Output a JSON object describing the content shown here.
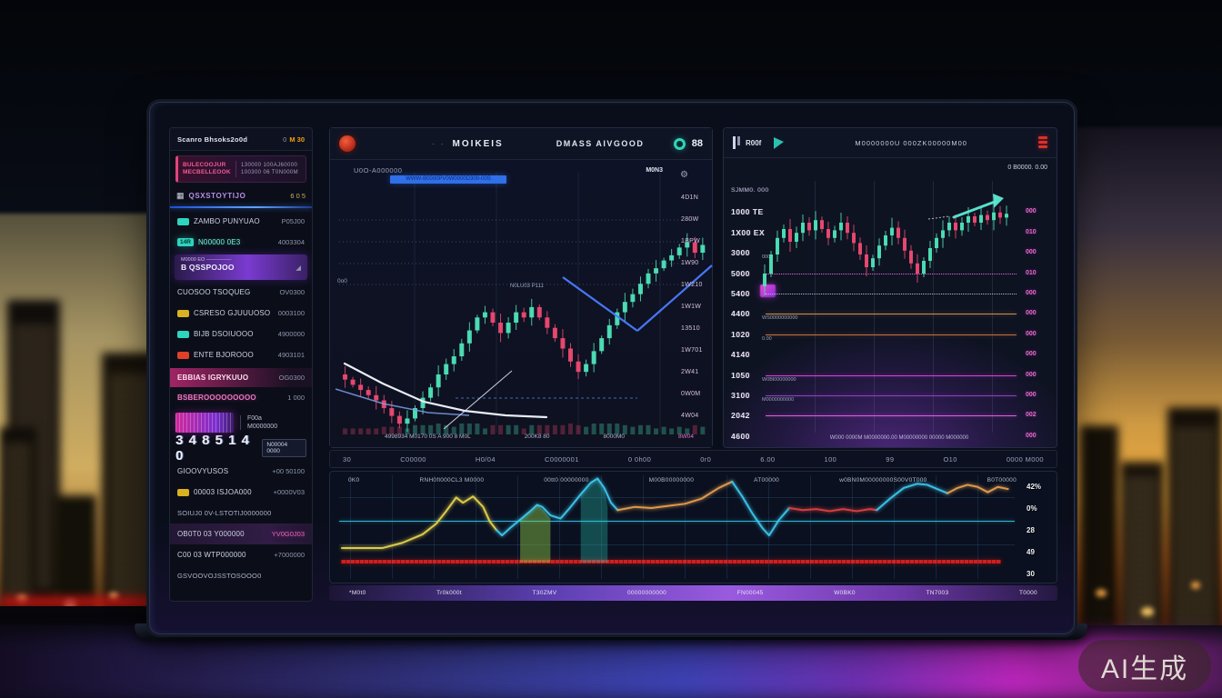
{
  "watermark": "AI生成",
  "sidebar": {
    "title": "Scanro Bhsoks2o0d",
    "badge_pre": "0",
    "badge": "M 30",
    "card": {
      "l1": "BULECOOJUR",
      "l2": "MECBELLEOOK",
      "r1": "130000  100AJ60000",
      "r2": "100300 06 T0N000M"
    },
    "nav": {
      "icon": "grid-icon",
      "label": "QSXSTOYTIJO",
      "meta": "6 0 5"
    },
    "rows": [
      {
        "style": "plain",
        "badge": "teal",
        "label": "ZAMBO PUNYUAO",
        "value": "P05J00"
      },
      {
        "style": "glow",
        "badge_text": "14R",
        "label": "N00000 0E3",
        "value": "4003304"
      },
      {
        "style": "sel",
        "top": "M0000 EO —————",
        "label": "B QSSPOJOO",
        "value": "◢"
      },
      {
        "style": "plain",
        "label": "CUOSOO TSOQUEG",
        "value": "OV0300"
      },
      {
        "style": "plain",
        "badge": "yellow",
        "label": "CSRESO GJUUUOSO",
        "value": "0003100"
      },
      {
        "style": "plain",
        "badge": "teal",
        "label": "BIJB DSOIUOOO",
        "value": "4900000"
      },
      {
        "style": "plain",
        "badge": "red",
        "label": "ENTE BJOROOO",
        "value": "4903101"
      },
      {
        "style": "pinkhead",
        "label": "EBBIAS IGRYKUUO",
        "value": "OG0300"
      },
      {
        "style": "plainpink",
        "label": "BSBEROOOOOOOOO",
        "value": "1 000"
      },
      {
        "style": "widget",
        "block": "T000",
        "r1": "F00a",
        "r2": "M0000000"
      },
      {
        "style": "big",
        "text": "3 4 8 5 1 4 0",
        "box": "N00004 0000"
      },
      {
        "style": "plain",
        "label": "GIOOVYUSOS",
        "value": "+00 50100"
      },
      {
        "style": "plain",
        "badge": "yellow",
        "label": "00003 ISJOA000",
        "value": "+0000V03"
      },
      {
        "style": "wide",
        "label": "SOIUJ0 0V-LSTOTIJ0000000",
        "value": ""
      },
      {
        "style": "hl",
        "label": "OB0T0 03 Y000000",
        "value": "YV0G0J03",
        "pink": true
      },
      {
        "style": "plain",
        "label": "C00 03 WTP000000",
        "value": "+7000000"
      },
      {
        "style": "wide",
        "label": "GSVOOVOJSSTOSOOO0",
        "value": ""
      }
    ]
  },
  "center": {
    "header": {
      "t1": "MOIKEIS",
      "t2": "DMASS AIVGOOD",
      "dots": "· ·",
      "right_num": "88"
    },
    "chart_label": "U0O-A000000",
    "ticker_strip": "WWW-B0000PV0W0000D300-00S",
    "right_small": "M0N3",
    "gear": "⚙",
    "zero_label": "0o0",
    "note": "N0LU03 P111",
    "x_labels": [
      "4998934 M0170 0S A 900 8 M0L",
      "200K8 80",
      "8000M0",
      "8W04"
    ]
  },
  "timeline": [
    "30",
    "C00000",
    "H0/04",
    "C0000001",
    "0 0h00",
    "0r0",
    "6.00",
    "100",
    "99",
    "O10",
    "0000 M000"
  ],
  "right_panel": {
    "header": {
      "name": "R00f",
      "title": "M0000000U 000ZK00000M00",
      "corner": "0 B0000. 0.00"
    },
    "rows": [
      {
        "label": "SJMM0. 000",
        "small": true
      },
      {
        "label": "1000 TE",
        "pink": "000"
      },
      {
        "label": "1X00 EX",
        "pink": "010"
      },
      {
        "label": "3000",
        "pink": "000",
        "sub": "0000"
      },
      {
        "label": "5000",
        "pink": "010",
        "line": "#e868d8",
        "dash": true
      },
      {
        "label": "5400",
        "pink": "000",
        "line": "#b8b8d0",
        "dash": true
      },
      {
        "label": "4400",
        "pink": "000",
        "line": "#c8904a",
        "sub": "WS0000000000"
      },
      {
        "label": "1020",
        "pink": "000",
        "line": "#c8703a",
        "sub": "0.00"
      },
      {
        "label": "4140",
        "pink": "000"
      },
      {
        "label": "1050",
        "pink": "000",
        "line": "#d940d9",
        "sub": "W0Bl00000000"
      },
      {
        "label": "3100",
        "pink": "000",
        "line": "#9040c0",
        "sub": "M0000000000"
      },
      {
        "label": "2042",
        "pink": "002",
        "line": "#e858e8"
      },
      {
        "label": "4600",
        "pink": "000"
      }
    ],
    "footer": "W000 0000M M0000000.00 M00000000 00000 M000000"
  },
  "bottom_panel": {
    "top_labels": [
      "0K0",
      "RNH0fl000CL3 M0000",
      "00tt0 00000000",
      "M00B00000000",
      "AT00000",
      "w0BN0M00000000S00V0T000",
      "B0T00000"
    ],
    "right_labels": [
      "42%",
      "0%",
      "28",
      "49",
      "30"
    ],
    "axis_labels": [
      "*M0t0",
      "Tr0k000t",
      "T30ZMV",
      "00000000000",
      "FN00045",
      "W0BK0",
      "TN7003",
      "T0000"
    ]
  },
  "chart_data": [
    {
      "type": "candlestick",
      "panel": "center-price-chart",
      "up_color": "#4fe3b8",
      "down_color": "#ee4a72",
      "closes_pct": [
        80,
        82,
        84,
        86,
        88,
        90,
        93,
        96,
        99,
        97,
        93,
        89,
        85,
        80,
        76,
        73,
        68,
        63,
        58,
        56,
        60,
        64,
        60,
        56,
        58,
        54,
        58,
        62,
        66,
        70,
        75,
        79,
        76,
        71,
        66,
        61,
        56,
        52,
        49,
        45,
        41,
        39,
        36,
        34,
        31,
        29,
        33,
        30
      ],
      "wicks": [
        5,
        9,
        3,
        7,
        4,
        10,
        6,
        8
      ],
      "y_labels": [
        "4D1N",
        "280W",
        "1BPW",
        "1W90",
        "1W210",
        "1W1W",
        "13510",
        "1W701",
        "2W41",
        "0W0M",
        "4W04"
      ],
      "has_volume": true
    },
    {
      "type": "candlestick",
      "panel": "right-price-chart",
      "up_color": "#4fe3b8",
      "down_color": "#ee4a72",
      "closes_pct": [
        80,
        70,
        55,
        42,
        35,
        45,
        38,
        30,
        36,
        28,
        35,
        42,
        36,
        30,
        38,
        46,
        55,
        65,
        58,
        48,
        40,
        34,
        42,
        52,
        62,
        70,
        60,
        50,
        42,
        36,
        30,
        36,
        30,
        25,
        30,
        24,
        28,
        22,
        26,
        23
      ],
      "wicks": [
        6,
        10,
        4,
        8,
        5,
        11,
        7,
        9
      ]
    },
    {
      "type": "line",
      "panel": "bottom-oscillator",
      "hline_pct": 43,
      "band_pct": 84,
      "series": [
        {
          "name": "yellow",
          "color": "#e8d44d",
          "points": [
            [
              0,
              69
            ],
            [
              6,
              69
            ],
            [
              9,
              64
            ],
            [
              12,
              56
            ],
            [
              14,
              46
            ],
            [
              15.5,
              34
            ],
            [
              17,
              21
            ],
            [
              18,
              26
            ],
            [
              19.5,
              20
            ],
            [
              21,
              30
            ],
            [
              22,
              44
            ],
            [
              23,
              52
            ]
          ]
        },
        {
          "name": "cyan-a",
          "color": "#3dc8f0",
          "points": [
            [
              23,
              52
            ],
            [
              23.8,
              57
            ],
            [
              25,
              50
            ],
            [
              26.5,
              42
            ],
            [
              28,
              34
            ],
            [
              29,
              28
            ],
            [
              29.8,
              30
            ],
            [
              31,
              38
            ],
            [
              32.5,
              41
            ],
            [
              34,
              30
            ],
            [
              35.5,
              18
            ],
            [
              37,
              7
            ],
            [
              38,
              3
            ],
            [
              39,
              12
            ],
            [
              40,
              26
            ],
            [
              41,
              33
            ]
          ]
        },
        {
          "name": "orange-a",
          "color": "#e8a050",
          "points": [
            [
              41,
              33
            ],
            [
              43.5,
              30
            ],
            [
              46,
              31
            ],
            [
              48.5,
              29
            ],
            [
              51,
              27
            ],
            [
              53.5,
              22
            ],
            [
              56,
              12
            ],
            [
              58,
              6
            ]
          ]
        },
        {
          "name": "cyan-b",
          "color": "#3dc8f0",
          "points": [
            [
              58,
              6
            ],
            [
              59.5,
              20
            ],
            [
              61,
              36
            ],
            [
              62.5,
              50
            ],
            [
              63.5,
              57
            ],
            [
              65,
              42
            ],
            [
              66.5,
              31
            ]
          ]
        },
        {
          "name": "red-seg",
          "color": "#e04040",
          "points": [
            [
              66.5,
              31
            ],
            [
              68.5,
              33
            ],
            [
              70.5,
              32
            ],
            [
              72.5,
              34
            ],
            [
              74.5,
              32
            ],
            [
              76.5,
              34
            ],
            [
              78.5,
              32
            ],
            [
              79.5,
              33
            ]
          ]
        },
        {
          "name": "cyan-c",
          "color": "#3dc8f0",
          "points": [
            [
              79.5,
              33
            ],
            [
              81.5,
              22
            ],
            [
              83.5,
              12
            ],
            [
              85.5,
              8
            ],
            [
              87,
              9
            ],
            [
              88.5,
              13
            ],
            [
              90,
              17
            ]
          ]
        },
        {
          "name": "orange-b",
          "color": "#e8a050",
          "points": [
            [
              90,
              17
            ],
            [
              91.5,
              12
            ],
            [
              93,
              9
            ],
            [
              94.5,
              11
            ],
            [
              96,
              16
            ],
            [
              97.5,
              11
            ],
            [
              99,
              13
            ]
          ]
        }
      ],
      "fills": [
        {
          "color": "#8ec846",
          "opacity": 0.45,
          "points": [
            [
              26.5,
              42
            ],
            [
              28,
              34
            ],
            [
              29,
              28
            ],
            [
              30,
              33
            ],
            [
              31,
              41
            ]
          ]
        },
        {
          "color": "#2dd4bf",
          "opacity": 0.3,
          "points": [
            [
              35.5,
              18
            ],
            [
              37,
              7
            ],
            [
              38,
              3
            ],
            [
              39,
              14
            ],
            [
              39.5,
              30
            ]
          ]
        }
      ]
    }
  ]
}
